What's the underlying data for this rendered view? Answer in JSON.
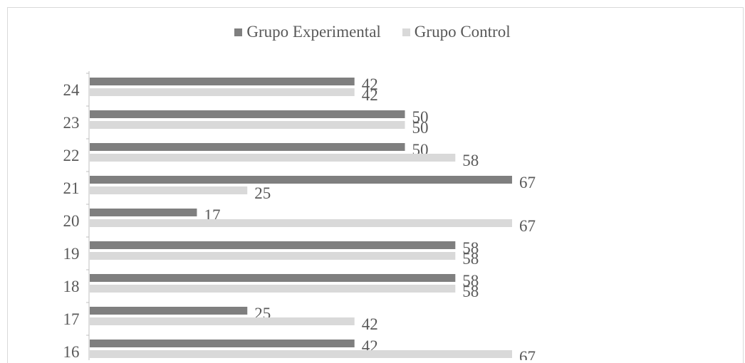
{
  "chart_data": {
    "type": "bar",
    "orientation": "horizontal",
    "title": "",
    "xlabel": "",
    "ylabel": "",
    "xlim": [
      0,
      100
    ],
    "grid": false,
    "legend_position": "top",
    "categories": [
      "24",
      "23",
      "22",
      "21",
      "20",
      "19",
      "18",
      "17",
      "16"
    ],
    "series": [
      {
        "name": "Grupo Experimental",
        "color": "#7f7f7f",
        "values": [
          42,
          50,
          50,
          67,
          17,
          58,
          58,
          25,
          42
        ]
      },
      {
        "name": "Grupo Control",
        "color": "#d9d9d9",
        "values": [
          42,
          50,
          58,
          25,
          67,
          58,
          58,
          42,
          67
        ]
      }
    ]
  },
  "colors": {
    "axis": "#bfbfbf",
    "text": "#595959"
  }
}
